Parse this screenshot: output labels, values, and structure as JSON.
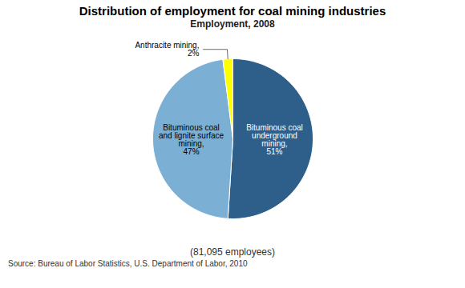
{
  "chart_data": {
    "type": "pie",
    "title": "Distribution of employment for coal mining industries",
    "subtitle": "Employment, 2008",
    "categories": [
      "Bituminous coal\nunderground\nmining,\n51%",
      "Bituminous coal\nand lignite surface\nmining,\n47%",
      "Anthracite mining,\n2%"
    ],
    "values": [
      51,
      47,
      2
    ],
    "colors": [
      "#2E5F8A",
      "#7BAFD4",
      "#FFFF00"
    ],
    "annotations": [
      "(81,095 employees)",
      "Source: Bureau of Labor Statistics, U.S. Department of Labor, 2010"
    ]
  }
}
